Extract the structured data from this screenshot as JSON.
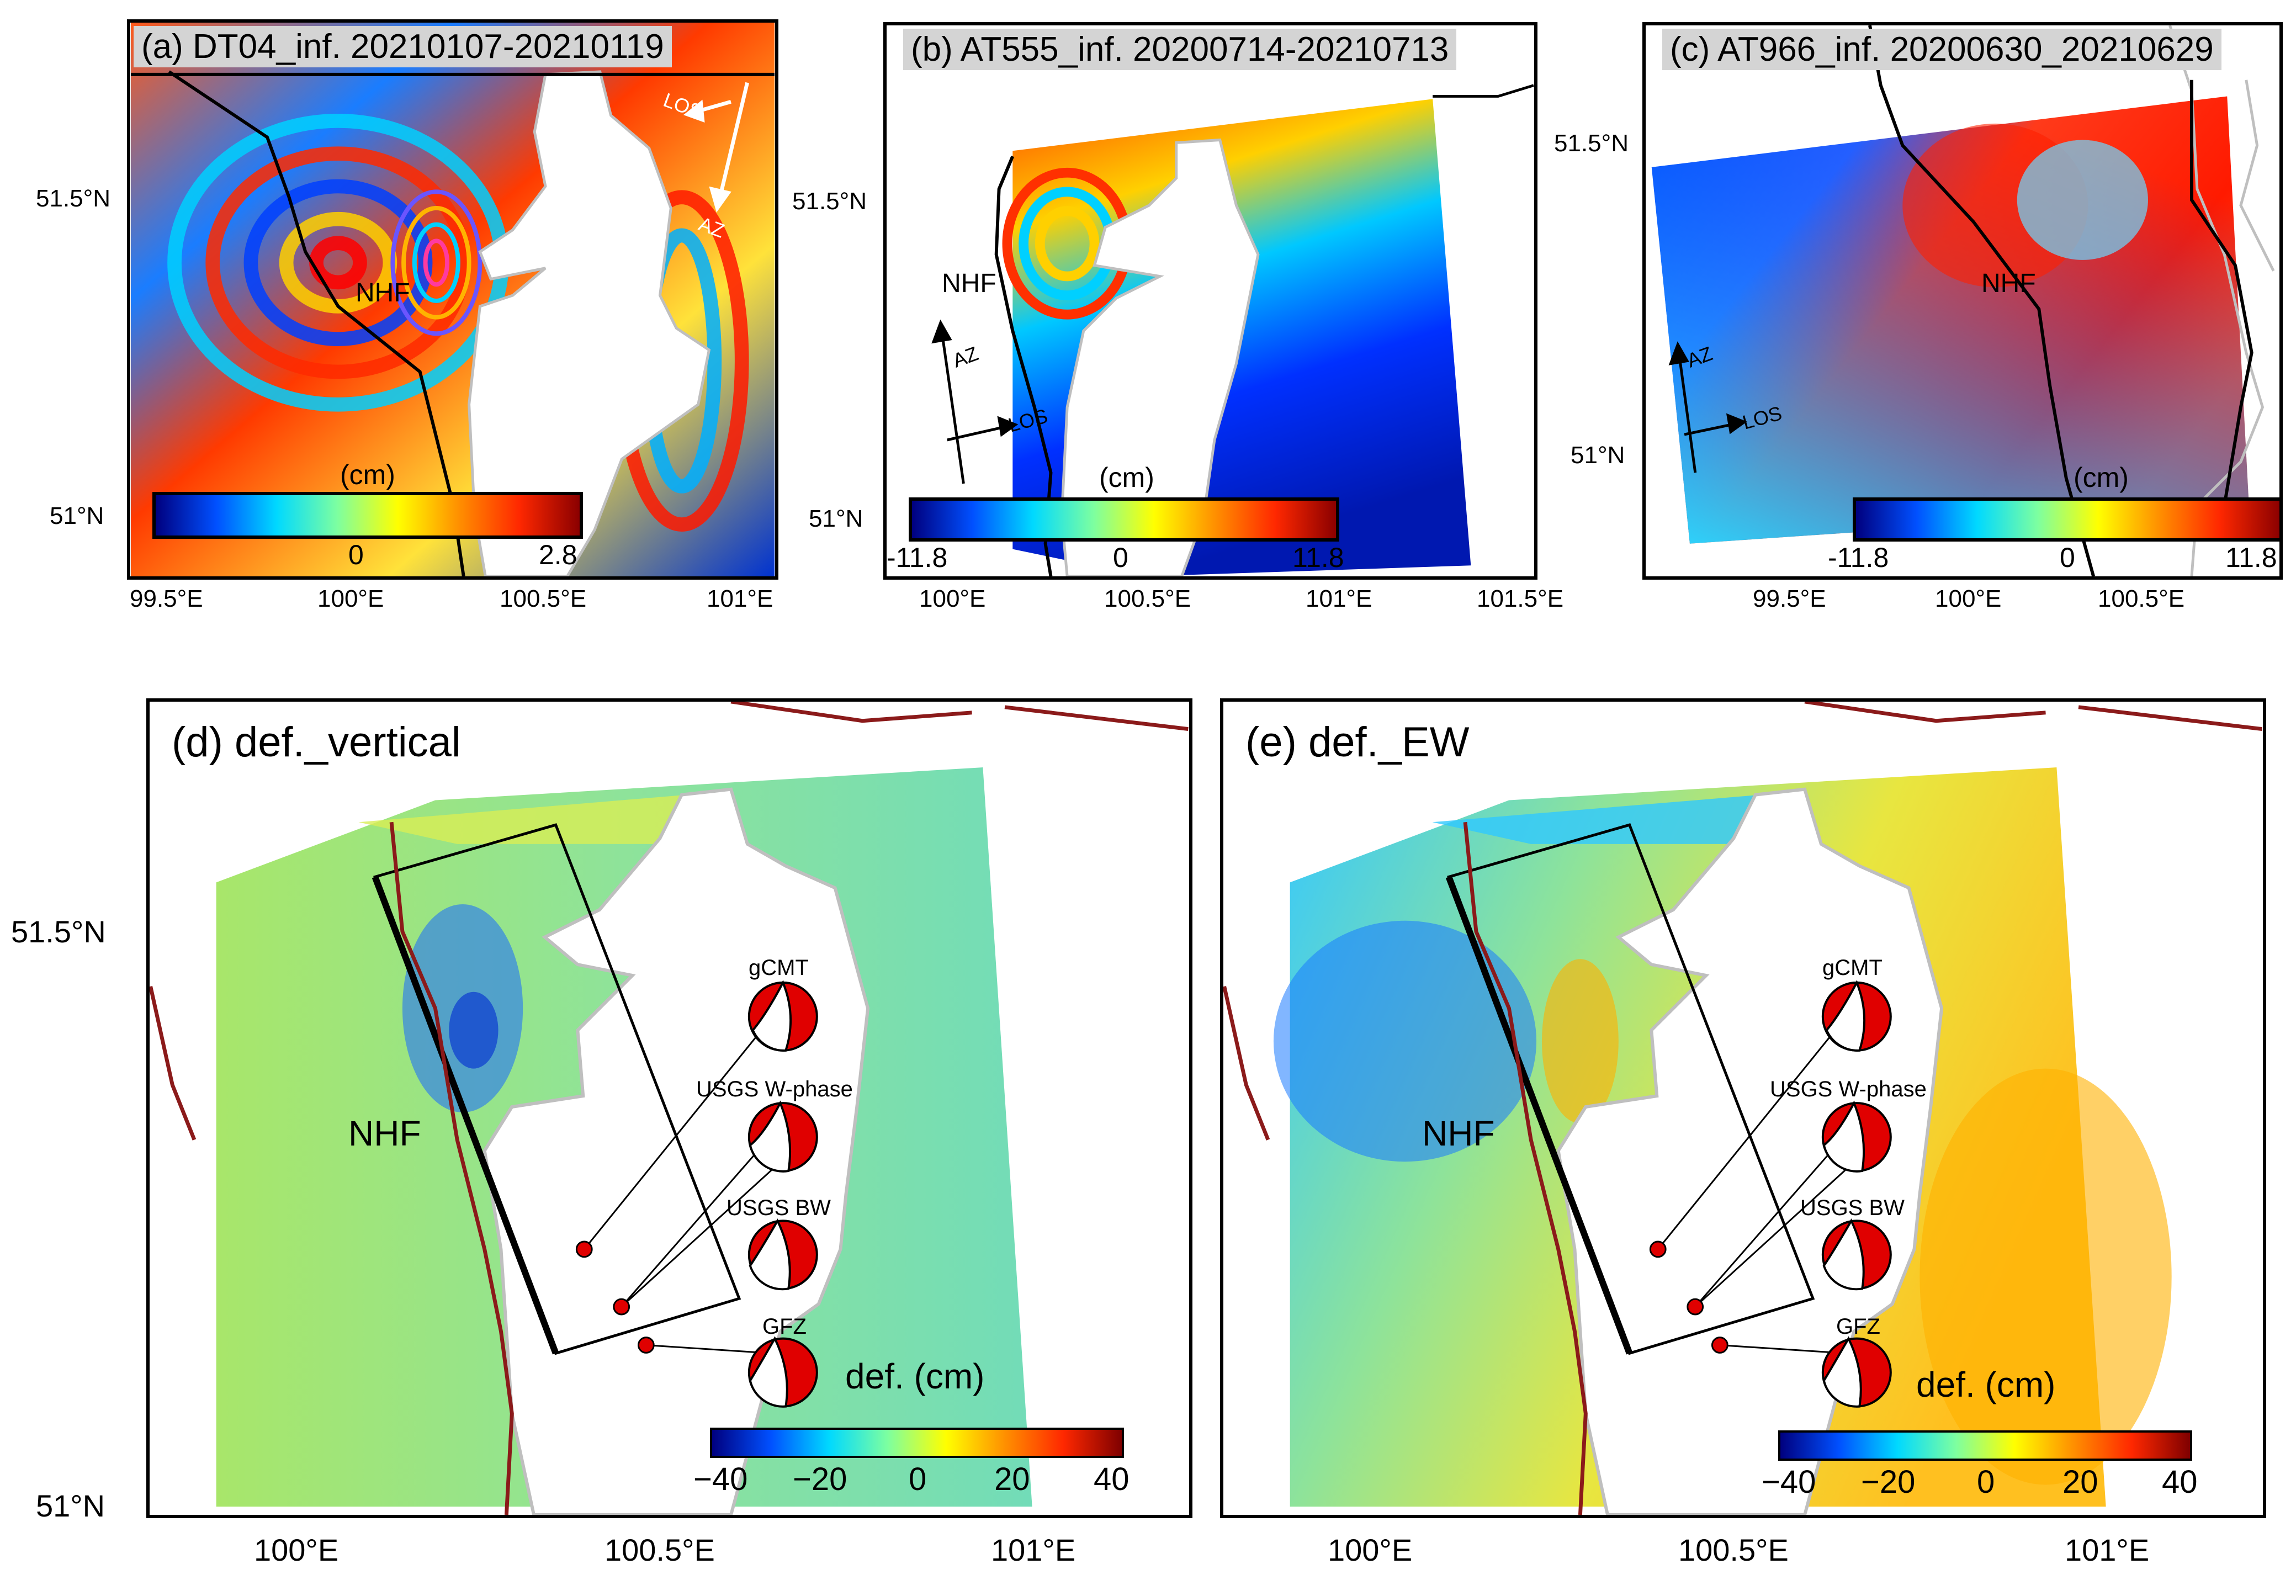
{
  "panels": {
    "a": {
      "title": "(a) DT04_inf. 20210107-20210119",
      "lat_ticks": [
        "51.5°N",
        "51°N"
      ],
      "lon_ticks": [
        "99.5°E",
        "100°E",
        "100.5°E",
        "101°E"
      ],
      "fault_label": "NHF",
      "los_label": "LOS",
      "az_label": "AZ",
      "colorbar": {
        "unit": "(cm)",
        "min_label": "0",
        "max_label": "2.8"
      }
    },
    "b": {
      "title": "(b) AT555_inf. 20200714-20210713",
      "lat_ticks": [
        "51.5°N",
        "51°N"
      ],
      "lon_ticks": [
        "100°E",
        "100.5°E",
        "101°E",
        "101.5°E"
      ],
      "fault_label": "NHF",
      "los_label": "LOS",
      "az_label": "AZ",
      "colorbar": {
        "unit": "(cm)",
        "min_label": "-11.8",
        "mid_label": "0",
        "max_label": "11.8"
      }
    },
    "c": {
      "title": "(c) AT966_inf. 20200630_20210629",
      "lat_ticks": [
        "51.5°N",
        "51°N"
      ],
      "lon_ticks": [
        "99.5°E",
        "100°E",
        "100.5°E"
      ],
      "fault_label": "NHF",
      "los_label": "LOS",
      "az_label": "AZ",
      "colorbar": {
        "unit": "(cm)",
        "min_label": "-11.8",
        "mid_label": "0",
        "max_label": "11.8"
      }
    },
    "d": {
      "title": "(d) def._vertical",
      "fault_label": "NHF",
      "unit_label": "def. (cm)",
      "mechanisms": [
        "gCMT",
        "USGS W-phase",
        "USGS BW",
        "GFZ"
      ],
      "colorbar": {
        "ticks": [
          "−40",
          "−20",
          "0",
          "20",
          "40"
        ]
      }
    },
    "e": {
      "title": "(e) def._EW",
      "fault_label": "NHF",
      "unit_label": "def. (cm)",
      "mechanisms": [
        "gCMT",
        "USGS W-phase",
        "USGS BW",
        "GFZ"
      ],
      "colorbar": {
        "ticks": [
          "−40",
          "−20",
          "0",
          "20",
          "40"
        ]
      }
    }
  },
  "bottom_axes": {
    "lat_ticks": [
      "51.5°N",
      "51°N"
    ],
    "lon_ticks_d": [
      "100°E",
      "100.5°E",
      "101°E"
    ],
    "lon_ticks_e": [
      "100°E",
      "100.5°E",
      "101°E"
    ]
  },
  "colors": {
    "fault_trace": "#8b1a1a",
    "lake_outline": "#bfbfbf",
    "epicenter": "#e00000",
    "mechanism_fill": "#e00000"
  }
}
